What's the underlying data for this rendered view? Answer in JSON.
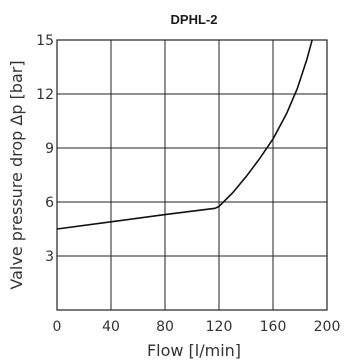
{
  "chart_data": {
    "type": "line",
    "title": "DPHL-2",
    "xlabel": "Flow [l/min]",
    "ylabel": "Valve pressure drop Δp [bar]",
    "xlim": [
      0,
      200
    ],
    "ylim": [
      0,
      15
    ],
    "xticks": [
      0,
      40,
      80,
      120,
      160,
      200
    ],
    "yticks": [
      3,
      6,
      9,
      12,
      15
    ],
    "grid": true,
    "series": [
      {
        "x": [
          0,
          40,
          80,
          117,
          120,
          130,
          140,
          150,
          160,
          170,
          178,
          185,
          189
        ],
        "y": [
          4.5,
          4.9,
          5.3,
          5.65,
          5.75,
          6.5,
          7.4,
          8.4,
          9.5,
          10.9,
          12.3,
          13.9,
          15.0
        ]
      }
    ]
  }
}
